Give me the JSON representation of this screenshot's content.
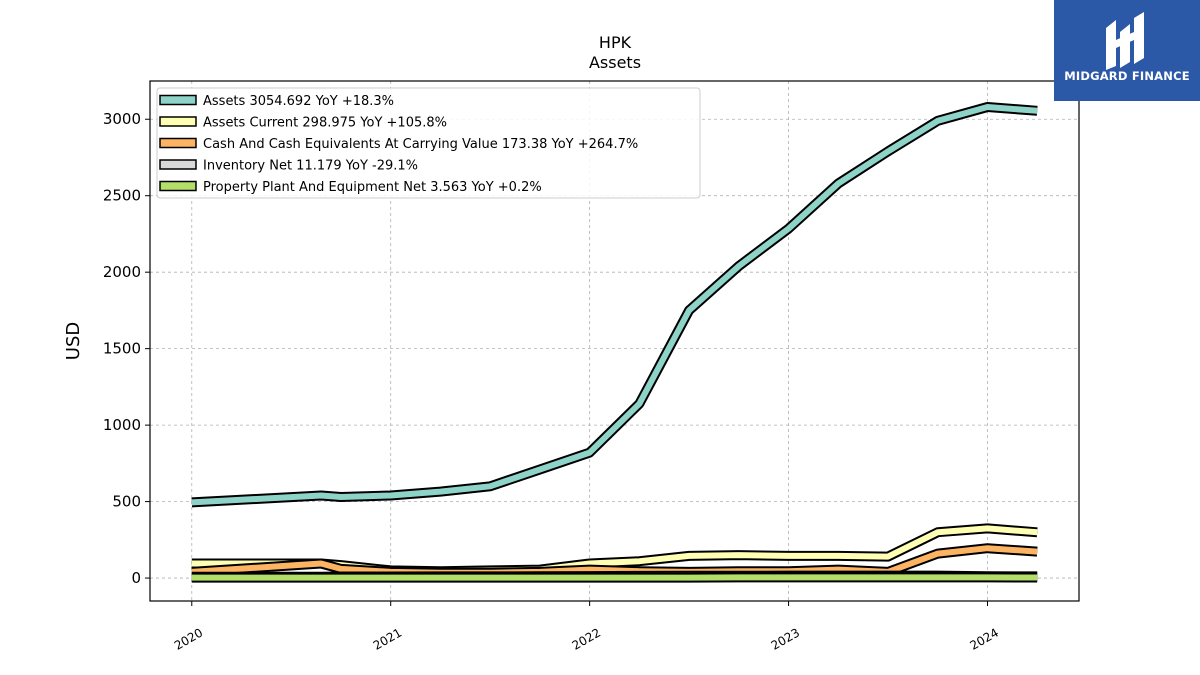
{
  "header": {
    "ticker": "HPK",
    "subtitle": "Assets"
  },
  "logo": {
    "text": "MIDGARD FINANCE",
    "icon": "midgard-logo-icon",
    "background": "#2c58a8"
  },
  "chart_data": {
    "type": "line",
    "title": "HPK",
    "subtitle": "Assets",
    "xlabel": "",
    "ylabel": "USD",
    "ylim": [
      -150,
      3250
    ],
    "xlim": [
      2019.79,
      2024.46
    ],
    "yticks": [
      0,
      500,
      1000,
      1500,
      2000,
      2500,
      3000
    ],
    "xticks": [
      2020,
      2021,
      2022,
      2023,
      2024
    ],
    "xtick_labels": [
      "2020",
      "2021",
      "2022",
      "2023",
      "2024"
    ],
    "grid": true,
    "legend_position": "top-left",
    "series": [
      {
        "name": "Assets",
        "legend": "Assets  3054.692 YoY +18.3%",
        "color": "#8dd3c7",
        "x": [
          2020.0,
          2020.65,
          2020.75,
          2021.0,
          2021.25,
          2021.5,
          2021.75,
          2022.0,
          2022.25,
          2022.5,
          2022.75,
          2023.0,
          2023.25,
          2023.5,
          2023.75,
          2024.0,
          2024.25
        ],
        "y": [
          495,
          540,
          530,
          540,
          565,
          600,
          710,
          820,
          1140,
          1750,
          2040,
          2285,
          2580,
          2790,
          2990,
          3080,
          3055
        ]
      },
      {
        "name": "Assets Current",
        "legend": "Assets Current  298.975 YoY +105.8%",
        "color": "#ffffb3",
        "x": [
          2020.0,
          2020.65,
          2020.75,
          2021.0,
          2021.25,
          2021.5,
          2021.75,
          2022.0,
          2022.25,
          2022.5,
          2022.75,
          2023.0,
          2023.25,
          2023.5,
          2023.75,
          2024.0,
          2024.25
        ],
        "y": [
          95,
          95,
          85,
          50,
          45,
          50,
          55,
          95,
          110,
          145,
          150,
          145,
          145,
          140,
          300,
          325,
          299
        ]
      },
      {
        "name": "Cash And Cash Equivalents At Carrying Value",
        "legend": "Cash And Cash Equivalents At Carrying Value  173.38 YoY +264.7%",
        "color": "#fdb462",
        "x": [
          2020.0,
          2020.65,
          2020.75,
          2021.0,
          2021.25,
          2021.5,
          2021.75,
          2022.0,
          2022.25,
          2022.5,
          2022.75,
          2023.0,
          2023.25,
          2023.5,
          2023.75,
          2024.0,
          2024.25
        ],
        "y": [
          40,
          95,
          60,
          40,
          35,
          35,
          40,
          55,
          45,
          40,
          45,
          45,
          55,
          40,
          160,
          195,
          173
        ]
      },
      {
        "name": "Inventory Net",
        "legend": "Inventory Net  11.179 YoY -29.1%",
        "color": "#d9d9d9",
        "x": [
          2020.0,
          2020.65,
          2020.75,
          2021.0,
          2021.25,
          2021.5,
          2021.75,
          2022.0,
          2022.25,
          2022.5,
          2022.75,
          2023.0,
          2023.25,
          2023.5,
          2023.75,
          2024.0,
          2024.25
        ],
        "y": [
          8,
          9,
          10,
          10,
          11,
          11,
          12,
          13,
          14,
          15,
          15,
          16,
          16,
          16,
          16,
          12,
          11
        ]
      },
      {
        "name": "Property Plant And Equipment Net",
        "legend": "Property Plant And Equipment Net  3.563 YoY +0.2%",
        "color": "#b3de69",
        "x": [
          2020.0,
          2020.65,
          2020.75,
          2021.0,
          2021.25,
          2021.5,
          2021.75,
          2022.0,
          2022.25,
          2022.5,
          2022.75,
          2023.0,
          2023.25,
          2023.5,
          2023.75,
          2024.0,
          2024.25
        ],
        "y": [
          3,
          3,
          3,
          3,
          3,
          3,
          3,
          3,
          3,
          3,
          4,
          4,
          4,
          4,
          4,
          4,
          3.6
        ]
      }
    ]
  }
}
